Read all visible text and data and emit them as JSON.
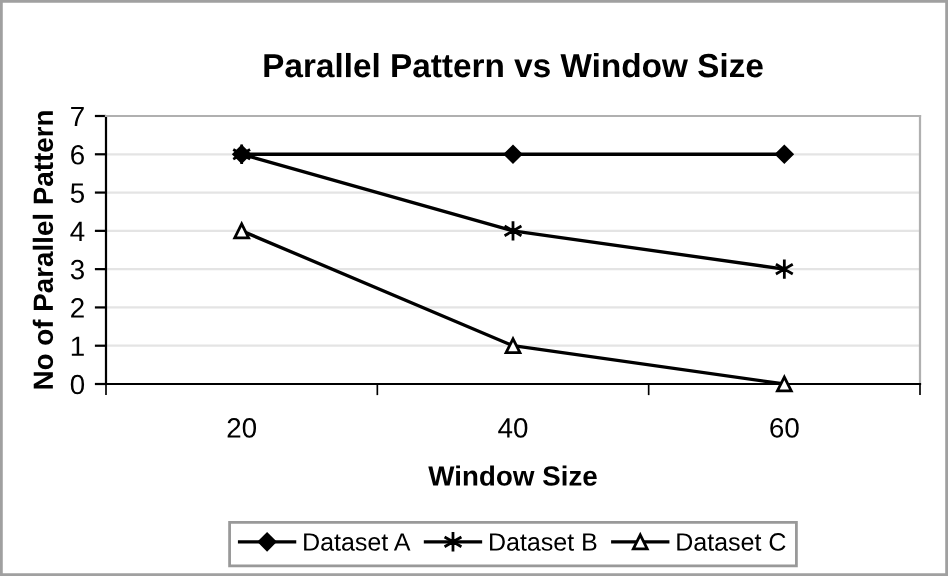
{
  "chart_data": {
    "type": "line",
    "title": "Parallel Pattern vs Window Size",
    "xlabel": "Window Size",
    "ylabel": "No of Parallel Pattern",
    "categories": [
      "20",
      "40",
      "60"
    ],
    "series": [
      {
        "name": "Dataset A",
        "color": "#000000",
        "marker": "diamond",
        "values": [
          6,
          6,
          6
        ]
      },
      {
        "name": "Dataset B",
        "color": "#000000",
        "marker": "cross",
        "values": [
          6,
          4,
          3
        ]
      },
      {
        "name": "Dataset C",
        "color": "#000000",
        "marker": "triangle",
        "values": [
          4,
          1,
          0
        ]
      }
    ],
    "ylim": [
      0,
      7
    ],
    "yticks": [
      0,
      1,
      2,
      3,
      4,
      5,
      6,
      7
    ],
    "grid": "y",
    "legend": "bottom",
    "line_style": "solid"
  }
}
